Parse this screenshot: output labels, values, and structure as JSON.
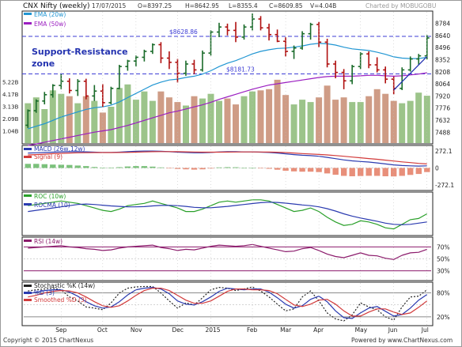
{
  "header": {
    "symbol": "CNX Nifty (weekly)",
    "date": "17/07/2015",
    "open": "O=8397.25",
    "high": "H=8642.95",
    "low": "L=8355.4",
    "close": "C=8609.85",
    "volume": "V=4.04B",
    "credit": "Charted by MOBUGOBU"
  },
  "footer": {
    "copyright": "Copyright © 2015 ChartNexus",
    "powered": "Powered by www.ChartNexus.com"
  },
  "colors": {
    "up": "#1a6b2a",
    "down": "#b01010",
    "ema20": "#2196d3",
    "ema50": "#9b1fc1",
    "trendline": "#2433b0",
    "vol_up": "#9cc48a",
    "vol_down": "#cf9c86",
    "hline": "#3d3dd6",
    "rsi_band": "#8b1a6b",
    "roc": "#2aa02a",
    "rocma": "#2b3bb0"
  },
  "chart_data": [
    {
      "type": "candlestick",
      "panel": "price",
      "legend": [
        "EMA (20w)",
        "EMA (50w)"
      ],
      "y_ticks": [
        "8784",
        "8640",
        "8496",
        "8352",
        "8208",
        "8064",
        "7920",
        "7776",
        "7632",
        "7488"
      ],
      "ylim": [
        7360,
        8920
      ],
      "x_ticks": [
        "Sep",
        "Oct",
        "Nov",
        "Dec",
        "2015",
        "Feb",
        "Mar",
        "Apr",
        "May",
        "Jun",
        "Jul"
      ],
      "x_tick_index": [
        4,
        9,
        13,
        18,
        22,
        27,
        31,
        35,
        40,
        44,
        48
      ],
      "annotation": "Support-Resistance\nzone",
      "hlines": [
        {
          "label": "$8628.86",
          "value": 8628.86
        },
        {
          "label": "$8181.73",
          "value": 8181.73
        }
      ],
      "ohlc": [
        [
          7572,
          7760,
          7540,
          7745
        ],
        [
          7745,
          7880,
          7720,
          7860
        ],
        [
          7860,
          7968,
          7820,
          7935
        ],
        [
          7935,
          8060,
          7900,
          8045
        ],
        [
          8045,
          8180,
          8000,
          8095
        ],
        [
          8095,
          8130,
          7950,
          7985
        ],
        [
          7985,
          8120,
          7920,
          8095
        ],
        [
          8095,
          8125,
          7880,
          7920
        ],
        [
          7920,
          8050,
          7860,
          7978
        ],
        [
          7978,
          8060,
          7790,
          7840
        ],
        [
          7840,
          8030,
          7820,
          8010
        ],
        [
          8010,
          8290,
          8000,
          8270
        ],
        [
          8270,
          8350,
          8220,
          8335
        ],
        [
          8335,
          8400,
          8270,
          8380
        ],
        [
          8380,
          8470,
          8330,
          8450
        ],
        [
          8450,
          8545,
          8420,
          8530
        ],
        [
          8530,
          8560,
          8310,
          8370
        ],
        [
          8370,
          8450,
          8240,
          8320
        ],
        [
          8320,
          8360,
          8080,
          8190
        ],
        [
          8190,
          8340,
          8160,
          8300
        ],
        [
          8300,
          8350,
          8180,
          8230
        ],
        [
          8230,
          8460,
          8210,
          8430
        ],
        [
          8430,
          8700,
          8400,
          8680
        ],
        [
          8680,
          8790,
          8620,
          8740
        ],
        [
          8740,
          8780,
          8640,
          8700
        ],
        [
          8700,
          8800,
          8560,
          8620
        ],
        [
          8620,
          8770,
          8590,
          8740
        ],
        [
          8740,
          8900,
          8700,
          8835
        ],
        [
          8835,
          8870,
          8700,
          8730
        ],
        [
          8730,
          8780,
          8580,
          8650
        ],
        [
          8650,
          8710,
          8560,
          8570
        ],
        [
          8570,
          8620,
          8390,
          8450
        ],
        [
          8450,
          8520,
          8360,
          8490
        ],
        [
          8490,
          8690,
          8470,
          8660
        ],
        [
          8660,
          8790,
          8590,
          8770
        ],
        [
          8770,
          8800,
          8500,
          8560
        ],
        [
          8560,
          8600,
          8260,
          8300
        ],
        [
          8300,
          8340,
          8130,
          8200
        ],
        [
          8200,
          8240,
          8000,
          8100
        ],
        [
          8100,
          8290,
          8060,
          8270
        ],
        [
          8270,
          8440,
          8240,
          8420
        ],
        [
          8420,
          8450,
          8250,
          8290
        ],
        [
          8290,
          8380,
          8200,
          8230
        ],
        [
          8230,
          8270,
          8070,
          8120
        ],
        [
          8120,
          8150,
          7940,
          8010
        ],
        [
          8010,
          8260,
          7990,
          8230
        ],
        [
          8230,
          8390,
          8210,
          8360
        ],
        [
          8360,
          8420,
          8290,
          8397
        ],
        [
          8397,
          8643,
          8355,
          8610
        ]
      ],
      "ema20": [
        7530,
        7560,
        7590,
        7630,
        7670,
        7700,
        7730,
        7760,
        7780,
        7790,
        7810,
        7850,
        7900,
        7950,
        8000,
        8050,
        8085,
        8110,
        8120,
        8140,
        8155,
        8180,
        8220,
        8270,
        8310,
        8340,
        8380,
        8420,
        8450,
        8470,
        8485,
        8490,
        8500,
        8515,
        8535,
        8545,
        8540,
        8525,
        8500,
        8480,
        8470,
        8460,
        8440,
        8415,
        8385,
        8370,
        8365,
        8365,
        8380
      ],
      "ema50": [
        7330,
        7350,
        7370,
        7390,
        7410,
        7430,
        7450,
        7470,
        7490,
        7505,
        7520,
        7545,
        7570,
        7600,
        7630,
        7660,
        7690,
        7720,
        7740,
        7765,
        7790,
        7815,
        7845,
        7880,
        7910,
        7940,
        7970,
        8000,
        8025,
        8050,
        8065,
        8080,
        8095,
        8110,
        8125,
        8140,
        8150,
        8155,
        8155,
        8155,
        8160,
        8165,
        8165,
        8160,
        8155,
        8160,
        8170,
        8180,
        8195
      ],
      "trendline": {
        "from_index": 44,
        "from_value": 7990,
        "to_index": 48,
        "to_value": 8390
      }
    },
    {
      "type": "bar",
      "panel": "volume",
      "y_ticks": [
        "5.22B",
        "4.17B",
        "3.13B",
        "2.09B",
        "1.04B"
      ],
      "ylim": [
        0,
        6.0
      ],
      "values": [
        3.4,
        3.9,
        2.9,
        4.5,
        4.2,
        4.0,
        3.4,
        4.0,
        3.6,
        2.6,
        3.1,
        4.7,
        5.0,
        3.7,
        4.4,
        3.6,
        4.4,
        3.9,
        3.5,
        3.2,
        4.0,
        3.8,
        4.2,
        3.6,
        3.8,
        3.3,
        4.0,
        4.4,
        4.5,
        4.6,
        5.4,
        4.1,
        3.3,
        3.7,
        3.5,
        3.9,
        4.9,
        3.7,
        3.9,
        3.5,
        3.5,
        4.0,
        4.6,
        4.2,
        3.6,
        3.4,
        3.6,
        4.3,
        4.04
      ]
    },
    {
      "type": "line",
      "panel": "macd",
      "series": [
        {
          "name": "MACD (26w,12w)",
          "values": [
            240,
            245,
            250,
            255,
            260,
            262,
            262,
            260,
            255,
            250,
            250,
            255,
            262,
            268,
            272,
            272,
            268,
            262,
            255,
            250,
            245,
            245,
            250,
            258,
            262,
            262,
            258,
            258,
            255,
            250,
            240,
            228,
            215,
            205,
            198,
            188,
            170,
            150,
            130,
            115,
            105,
            95,
            82,
            65,
            50,
            40,
            35,
            30,
            35
          ]
        },
        {
          "name": "Signal (9)",
          "values": [
            210,
            215,
            222,
            230,
            236,
            240,
            244,
            246,
            248,
            248,
            248,
            249,
            251,
            254,
            258,
            262,
            264,
            264,
            262,
            260,
            257,
            255,
            254,
            254,
            256,
            257,
            258,
            258,
            257,
            256,
            253,
            248,
            240,
            232,
            225,
            218,
            210,
            200,
            188,
            176,
            164,
            152,
            140,
            126,
            112,
            98,
            86,
            74,
            65
          ]
        }
      ],
      "y_ticks": [
        "272.1",
        "0",
        "-272.1"
      ],
      "ylim": [
        -350,
        350
      ]
    },
    {
      "type": "line",
      "panel": "roc",
      "series": [
        {
          "name": "ROC (10w)",
          "values": [
            8.5,
            9.0,
            9.5,
            10.0,
            10.5,
            10.0,
            9.5,
            8.5,
            7.5,
            6.5,
            6.0,
            7.0,
            8.5,
            9.0,
            9.5,
            10.5,
            9.5,
            8.5,
            7.5,
            6.0,
            6.0,
            7.0,
            8.5,
            10.0,
            10.5,
            10.0,
            10.5,
            11.0,
            11.0,
            10.5,
            9.0,
            7.5,
            6.0,
            6.5,
            7.5,
            6.0,
            3.5,
            1.5,
            0.0,
            0.5,
            2.0,
            1.5,
            0.5,
            -1.0,
            -1.5,
            0.5,
            2.5,
            3.0,
            5.0
          ]
        },
        {
          "name": "ROCMA (10)",
          "values": [
            6.0,
            6.5,
            7.0,
            7.5,
            8.0,
            8.5,
            9.0,
            9.2,
            9.0,
            8.7,
            8.4,
            8.2,
            8.0,
            8.0,
            8.1,
            8.4,
            8.6,
            8.6,
            8.5,
            8.2,
            7.8,
            7.6,
            7.6,
            7.9,
            8.2,
            8.6,
            9.0,
            9.4,
            9.8,
            10.0,
            9.9,
            9.6,
            9.2,
            8.8,
            8.5,
            8.0,
            7.2,
            6.2,
            5.0,
            4.0,
            3.2,
            2.5,
            1.8,
            1.0,
            0.5,
            0.3,
            0.5,
            1.0,
            1.5
          ]
        }
      ],
      "ylim": [
        -4,
        14
      ]
    },
    {
      "type": "line",
      "panel": "rsi",
      "series": [
        {
          "name": "RSI (14w)",
          "values": [
            68,
            69,
            70,
            71,
            72,
            70,
            69,
            67,
            66,
            64,
            65,
            68,
            70,
            71,
            72,
            73,
            69,
            67,
            64,
            66,
            65,
            68,
            71,
            73,
            72,
            71,
            72,
            74,
            71,
            68,
            65,
            62,
            63,
            67,
            69,
            64,
            58,
            54,
            52,
            56,
            60,
            56,
            55,
            51,
            49,
            56,
            60,
            61,
            66
          ]
        }
      ],
      "y_ticks": [
        "70%",
        "50%",
        "30%"
      ],
      "ylim": [
        15,
        85
      ]
    },
    {
      "type": "line",
      "panel": "stochastic",
      "series": [
        {
          "name": "Stochastic %K (14w)",
          "values": [
            85,
            88,
            90,
            92,
            88,
            70,
            60,
            45,
            42,
            38,
            55,
            80,
            92,
            95,
            96,
            96,
            80,
            60,
            42,
            55,
            50,
            68,
            88,
            94,
            92,
            86,
            90,
            95,
            85,
            70,
            52,
            35,
            40,
            70,
            85,
            60,
            30,
            15,
            10,
            25,
            55,
            45,
            38,
            20,
            12,
            45,
            70,
            72,
            88
          ]
        },
        {
          "name": "%D (3)",
          "values": [
            78,
            82,
            86,
            88,
            88,
            82,
            72,
            58,
            48,
            42,
            45,
            58,
            75,
            88,
            92,
            94,
            90,
            78,
            60,
            52,
            50,
            58,
            70,
            84,
            92,
            90,
            88,
            90,
            90,
            82,
            68,
            52,
            42,
            48,
            64,
            72,
            58,
            35,
            18,
            16,
            30,
            42,
            46,
            34,
            22,
            26,
            42,
            62,
            76
          ]
        },
        {
          "name": "Smoothed %D (3)",
          "values": [
            70,
            74,
            80,
            84,
            86,
            85,
            80,
            70,
            58,
            48,
            44,
            48,
            60,
            74,
            86,
            92,
            92,
            86,
            74,
            62,
            54,
            54,
            60,
            72,
            84,
            90,
            90,
            88,
            88,
            86,
            78,
            64,
            50,
            46,
            52,
            62,
            64,
            52,
            35,
            22,
            22,
            32,
            40,
            40,
            32,
            26,
            30,
            44,
            60
          ]
        }
      ],
      "y_ticks": [
        "80%",
        "20%"
      ],
      "ylim": [
        0,
        105
      ]
    }
  ]
}
